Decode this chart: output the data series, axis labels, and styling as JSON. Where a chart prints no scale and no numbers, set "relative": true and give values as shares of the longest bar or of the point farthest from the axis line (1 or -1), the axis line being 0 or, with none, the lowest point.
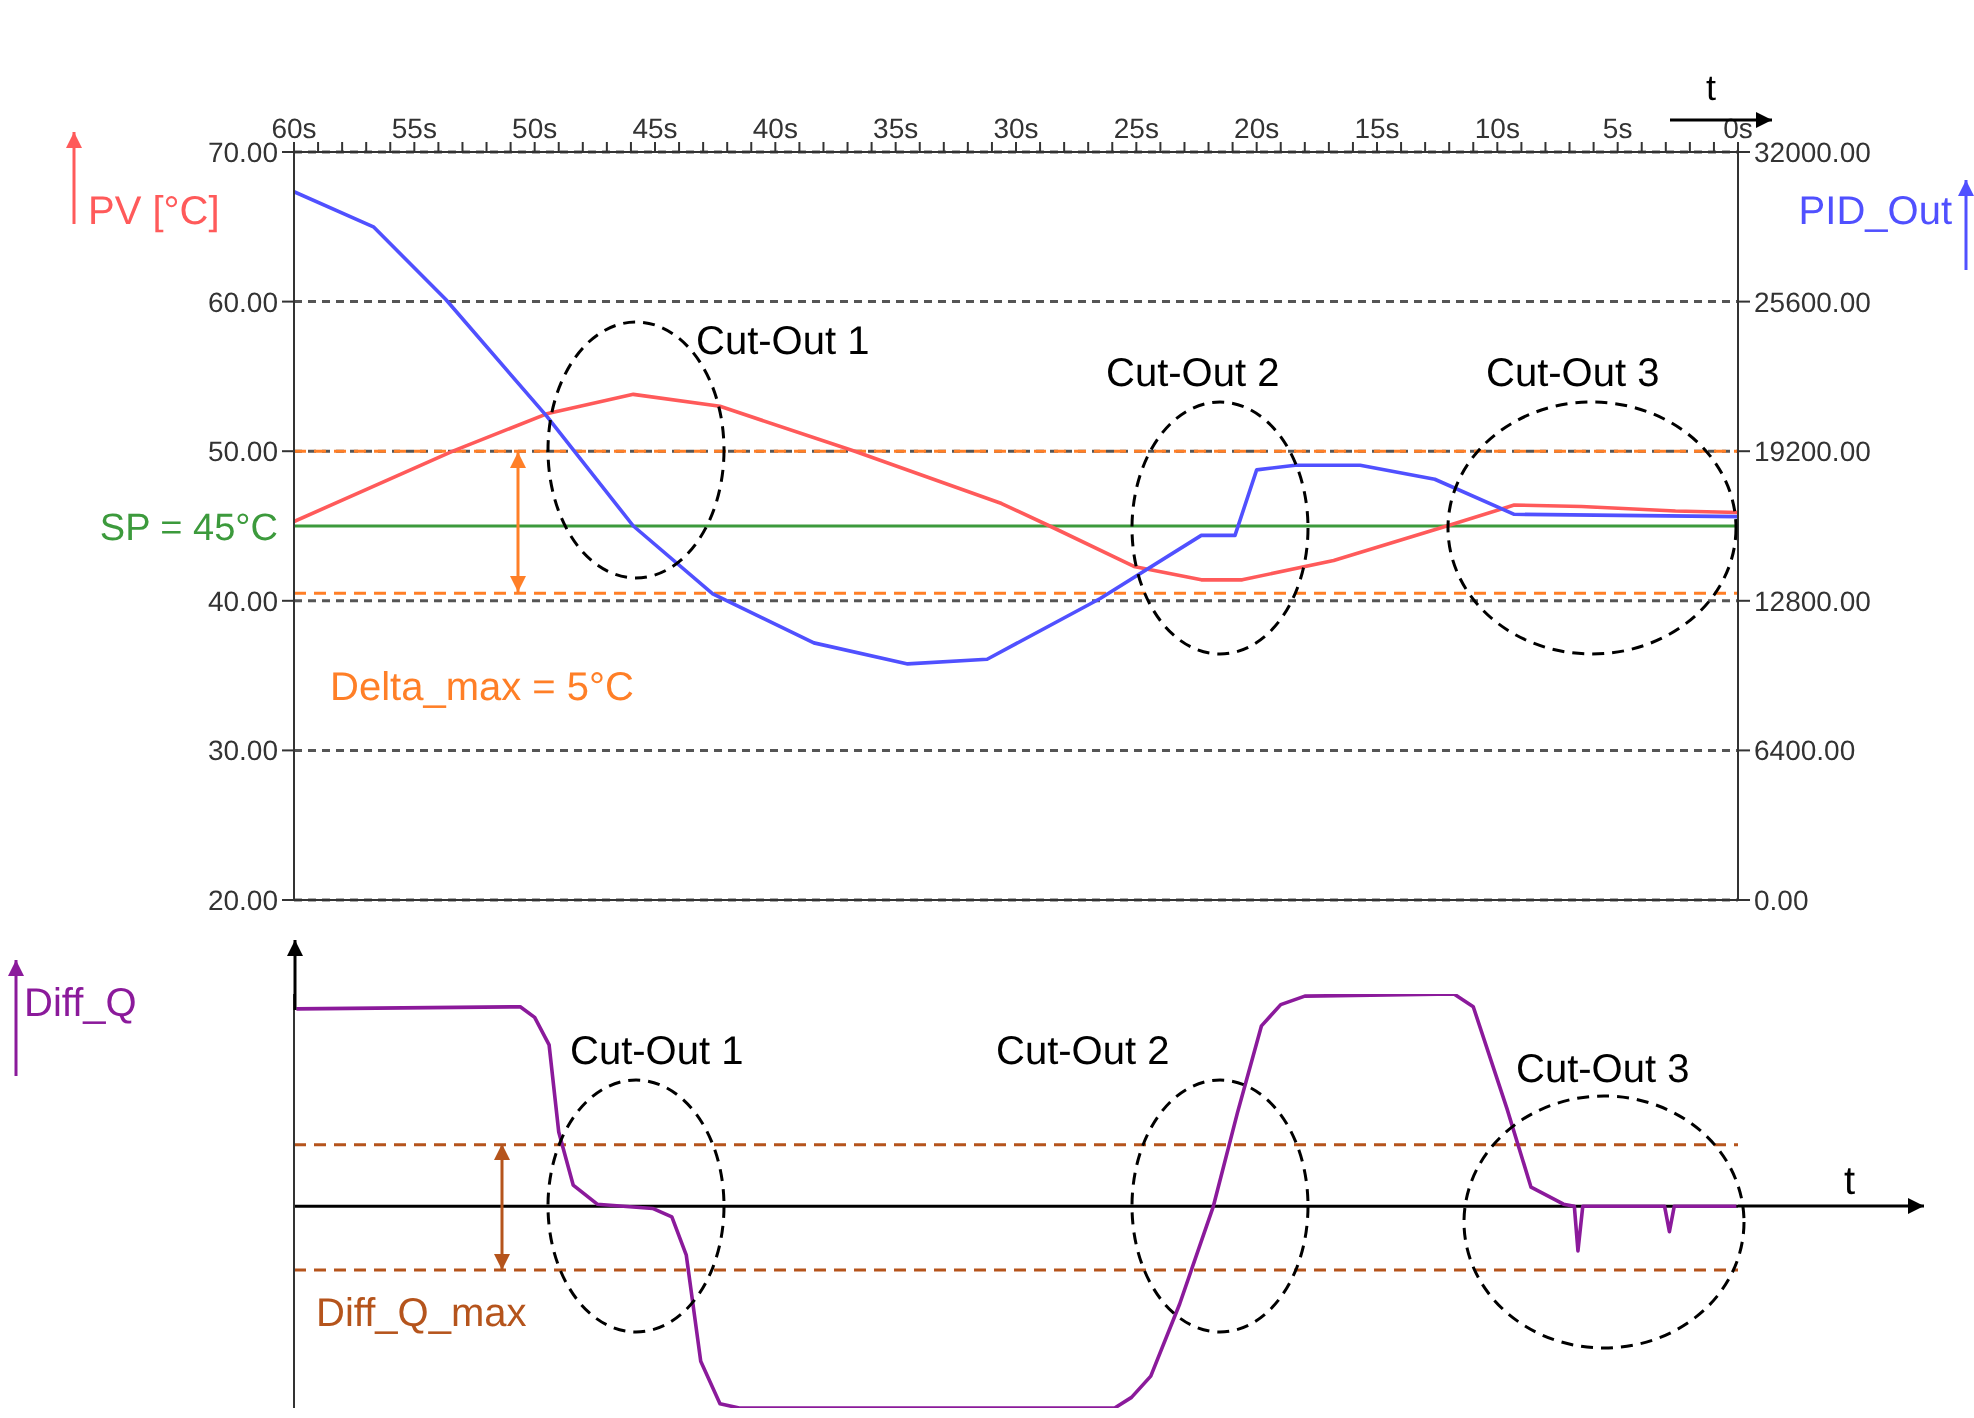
{
  "chart_data": [
    {
      "type": "line",
      "xlabel": "t",
      "ylabel": "PV [°C]",
      "y2label": "PID_Out",
      "xlim": [
        60,
        0
      ],
      "xticks": [
        {
          "value": 60,
          "label": "60s"
        },
        {
          "value": 59,
          "label": null
        },
        {
          "value": 58,
          "label": null
        },
        {
          "value": 57,
          "label": null
        },
        {
          "value": 56,
          "label": null
        },
        {
          "value": 55,
          "label": "55s"
        },
        {
          "value": 54,
          "label": null
        },
        {
          "value": 53,
          "label": null
        },
        {
          "value": 52,
          "label": null
        },
        {
          "value": 51,
          "label": null
        },
        {
          "value": 50,
          "label": "50s"
        },
        {
          "value": 49,
          "label": null
        },
        {
          "value": 48,
          "label": null
        },
        {
          "value": 47,
          "label": null
        },
        {
          "value": 46,
          "label": null
        },
        {
          "value": 45,
          "label": "45s"
        },
        {
          "value": 44,
          "label": null
        },
        {
          "value": 43,
          "label": null
        },
        {
          "value": 42,
          "label": null
        },
        {
          "value": 41,
          "label": null
        },
        {
          "value": 40,
          "label": "40s"
        },
        {
          "value": 39,
          "label": null
        },
        {
          "value": 38,
          "label": null
        },
        {
          "value": 37,
          "label": null
        },
        {
          "value": 36,
          "label": null
        },
        {
          "value": 35,
          "label": "35s"
        },
        {
          "value": 34,
          "label": null
        },
        {
          "value": 33,
          "label": null
        },
        {
          "value": 32,
          "label": null
        },
        {
          "value": 31,
          "label": null
        },
        {
          "value": 30,
          "label": "30s"
        },
        {
          "value": 29,
          "label": null
        },
        {
          "value": 28,
          "label": null
        },
        {
          "value": 27,
          "label": null
        },
        {
          "value": 26,
          "label": null
        },
        {
          "value": 25,
          "label": "25s"
        },
        {
          "value": 24,
          "label": null
        },
        {
          "value": 23,
          "label": null
        },
        {
          "value": 22,
          "label": null
        },
        {
          "value": 21,
          "label": null
        },
        {
          "value": 20,
          "label": "20s"
        },
        {
          "value": 19,
          "label": null
        },
        {
          "value": 18,
          "label": null
        },
        {
          "value": 17,
          "label": null
        },
        {
          "value": 16,
          "label": null
        },
        {
          "value": 15,
          "label": "15s"
        },
        {
          "value": 14,
          "label": null
        },
        {
          "value": 13,
          "label": null
        },
        {
          "value": 12,
          "label": null
        },
        {
          "value": 11,
          "label": null
        },
        {
          "value": 10,
          "label": "10s"
        },
        {
          "value": 9,
          "label": null
        },
        {
          "value": 8,
          "label": null
        },
        {
          "value": 7,
          "label": null
        },
        {
          "value": 6,
          "label": null
        },
        {
          "value": 5,
          "label": "5s"
        },
        {
          "value": 4,
          "label": null
        },
        {
          "value": 3,
          "label": null
        },
        {
          "value": 2,
          "label": null
        },
        {
          "value": 1,
          "label": null
        },
        {
          "value": 0,
          "label": "0s"
        }
      ],
      "ylim": [
        20,
        70
      ],
      "yticks": [
        {
          "value": 20,
          "label": "20.00"
        },
        {
          "value": 30,
          "label": "30.00"
        },
        {
          "value": 40,
          "label": "40.00"
        },
        {
          "value": 50,
          "label": "50.00"
        },
        {
          "value": 60,
          "label": "60.00"
        },
        {
          "value": 70,
          "label": "70.00"
        }
      ],
      "y2lim": [
        0,
        32000
      ],
      "y2ticks": [
        {
          "value": 0,
          "label": "0.00"
        },
        {
          "value": 6400,
          "label": "6400.00"
        },
        {
          "value": 12800,
          "label": "12800.00"
        },
        {
          "value": 19200,
          "label": "19200.00"
        },
        {
          "value": 25600,
          "label": "25600.00"
        },
        {
          "value": 32000,
          "label": "32000.00"
        }
      ],
      "grid": "y",
      "ref_lines": [
        {
          "axis": "y",
          "value": 45,
          "label": "SP = 45°C",
          "color": "#3c9a3c",
          "line_style": "solid"
        },
        {
          "axis": "y",
          "value": 50,
          "color": "#ff7f27",
          "line_style": "dashed"
        },
        {
          "axis": "y",
          "value": 40.5,
          "color": "#ff7f27",
          "line_style": "dashed"
        }
      ],
      "annotations": [
        "Cut-Out 1",
        "Cut-Out 2",
        "Cut-Out 3",
        "Delta_max = 5°C"
      ],
      "series": [
        {
          "color": "#ff5a5a",
          "x": [
            60,
            53.4,
            49.5,
            45.9,
            42.3,
            36.7,
            30.6,
            28.6,
            25.1,
            22.3,
            20.6,
            16.8,
            12.1,
            9.3,
            6.5,
            2.6,
            0
          ],
          "values": [
            45.3,
            50,
            52.5,
            53.8,
            53.0,
            50,
            46.5,
            45.0,
            42.3,
            41.4,
            41.4,
            42.7,
            45.0,
            46.4,
            46.3,
            46.0,
            45.9
          ]
        },
        {
          "color": "#5050ff",
          "axis": "y2",
          "x": [
            60,
            56.7,
            53.7,
            49.5,
            45.9,
            42.6,
            38.4,
            34.5,
            31.2,
            26.5,
            22.3,
            20.9,
            20.0,
            18.4,
            15.7,
            12.6,
            9.3,
            0
          ],
          "values": [
            30300,
            28800,
            25700,
            20700,
            16000,
            13100,
            11000,
            10100,
            10300,
            12900,
            15600,
            15600,
            18400,
            18600,
            18600,
            18000,
            16500,
            16400
          ]
        }
      ]
    },
    {
      "type": "line",
      "relative": true,
      "xlabel": "t",
      "ylabel": "Diff_Q",
      "xlim": [
        60,
        0
      ],
      "ref_lines": [
        {
          "axis": "y",
          "value": 0.29,
          "color": "#b5541c",
          "line_style": "dashed"
        },
        {
          "axis": "y",
          "value": -0.3,
          "color": "#b5541c",
          "line_style": "dashed"
        }
      ],
      "annotations": [
        "Cut-Out 1",
        "Cut-Out 2",
        "Cut-Out 3",
        "Diff_Q_max"
      ],
      "series": [
        {
          "color": "#8b1a9b",
          "x": [
            59.9,
            50.6,
            50.0,
            49.4,
            49.0,
            48.4,
            47.4,
            45.1,
            44.3,
            43.7,
            43.1,
            42.3,
            41.5,
            25.9,
            25.2,
            24.4,
            23.2,
            21.8,
            20.8,
            19.8,
            19.0,
            18.0,
            11.8,
            11.0,
            9.6,
            8.6,
            7.25,
            6.8,
            6.65,
            6.45,
            3.05,
            2.85,
            2.65,
            0.07
          ],
          "values": [
            0.93,
            0.94,
            0.89,
            0.76,
            0.35,
            0.1,
            0.01,
            -0.01,
            -0.05,
            -0.23,
            -0.73,
            -0.93,
            -0.95,
            -0.95,
            -0.9,
            -0.8,
            -0.46,
            0,
            0.44,
            0.85,
            0.95,
            0.99,
            1,
            0.94,
            0.46,
            0.09,
            0.01,
            0,
            -0.21,
            0,
            0,
            -0.12,
            0,
            0
          ]
        }
      ]
    }
  ]
}
